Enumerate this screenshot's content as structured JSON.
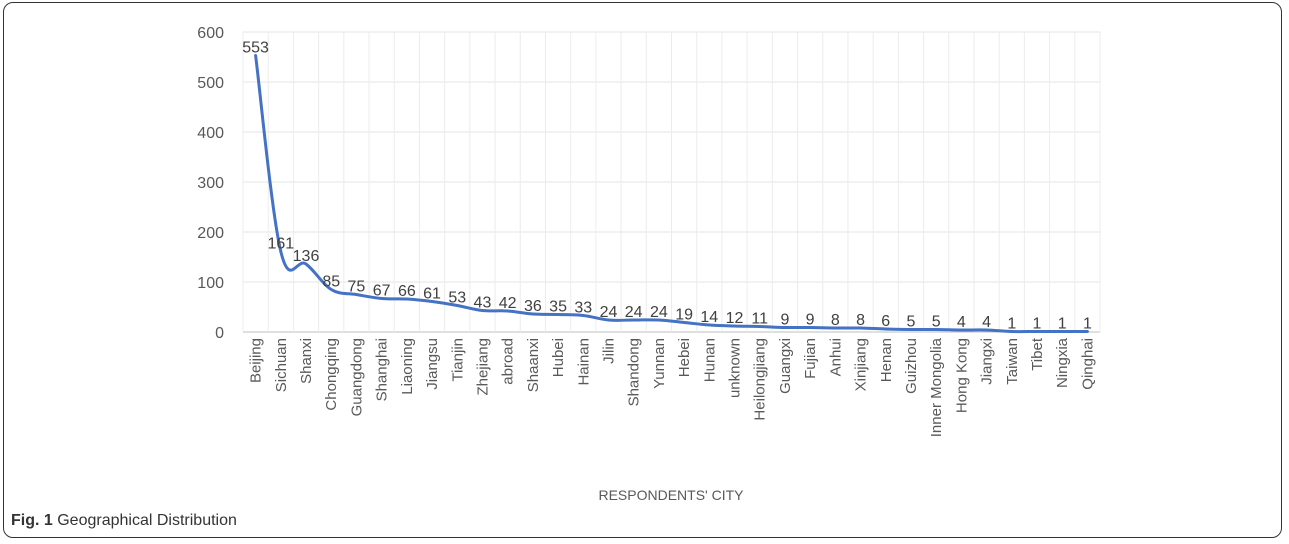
{
  "figure": {
    "label": "Fig. 1",
    "caption": "Geographical Distribution"
  },
  "chart_data": {
    "type": "line",
    "xlabel": "RESPONDENTS' CITY",
    "ylabel": "",
    "ylim": [
      0,
      600
    ],
    "yticks": [
      0,
      100,
      200,
      300,
      400,
      500,
      600
    ],
    "grid": true,
    "line_color": "#4472C4",
    "categories": [
      "Beijing",
      "Sichuan",
      "Shanxi",
      "Chongqing",
      "Guangdong",
      "Shanghai",
      "Liaoning",
      "Jiangsu",
      "Tianjin",
      "Zhejiang",
      "abroad",
      "Shaanxi",
      "Hubei",
      "Hainan",
      "Jilin",
      "Shandong",
      "Yunnan",
      "Hebei",
      "Hunan",
      "unknown",
      "Heilongjiang",
      "Guangxi",
      "Fujian",
      "Anhui",
      "Xinjiang",
      "Henan",
      "Guizhou",
      "Inner Mongolia",
      "Hong Kong",
      "Jiangxi",
      "Taiwan",
      "Tibet",
      "Ningxia",
      "Qinghai"
    ],
    "values": [
      553,
      161,
      136,
      85,
      75,
      67,
      66,
      61,
      53,
      43,
      42,
      36,
      35,
      33,
      24,
      24,
      24,
      19,
      14,
      12,
      11,
      9,
      9,
      8,
      8,
      6,
      5,
      5,
      4,
      4,
      1,
      1,
      1,
      1
    ],
    "data_labels": [
      "553",
      "161",
      "136",
      "85",
      "75",
      "67",
      "66",
      "61",
      "53",
      "43",
      "42",
      "36",
      "35",
      "33",
      "24",
      "24",
      "24",
      "19",
      "14",
      "12",
      "11",
      "9",
      "9",
      "8",
      "8",
      "6",
      "5",
      "5",
      "4",
      "4",
      "1",
      "1",
      "1",
      "1"
    ]
  }
}
